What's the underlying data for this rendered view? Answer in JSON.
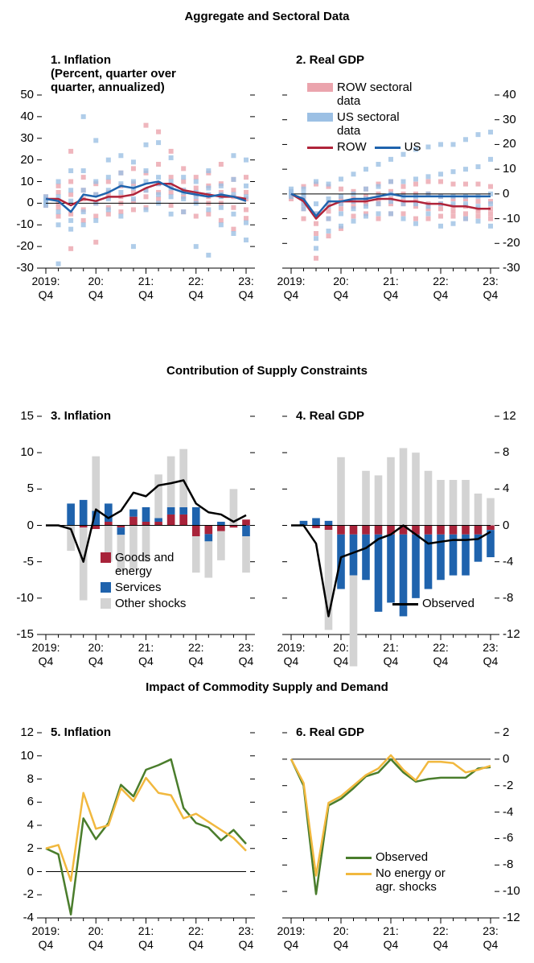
{
  "sections": [
    "Aggregate and Sectoral Data",
    "Contribution of Supply Constraints",
    "Impact of Commodity Supply and Demand"
  ],
  "chart_data": [
    {
      "type": "line",
      "title": "1. Inflation",
      "subtitle": "(Percent, quarter over quarter, annualized)",
      "yaxis_side": "left",
      "categories": [
        "2019: Q4",
        null,
        null,
        null,
        "20: Q4",
        null,
        null,
        null,
        "21: Q4",
        null,
        null,
        null,
        "22: Q4",
        null,
        null,
        null,
        "23: Q4"
      ],
      "ylim": [
        -30,
        50
      ],
      "yticks": [
        -30,
        -20,
        -10,
        0,
        10,
        20,
        30,
        40,
        50
      ],
      "series": [
        {
          "type": "scatter",
          "color": "#eba4ad",
          "values": [
            [
              3,
              1,
              0,
              2,
              -1
            ],
            [
              8,
              5,
              -2,
              -6,
              0
            ],
            [
              24,
              10,
              -5,
              -21,
              4
            ],
            [
              12,
              6,
              -3,
              -8,
              2
            ],
            [
              9,
              4,
              -6,
              -18,
              0
            ],
            [
              10,
              5,
              -2,
              -5,
              3
            ],
            [
              14,
              8,
              0,
              -4,
              3
            ],
            [
              16,
              9,
              1,
              -3,
              5
            ],
            [
              36,
              14,
              6,
              -2,
              3
            ],
            [
              33,
              18,
              9,
              2,
              5
            ],
            [
              24,
              12,
              5,
              -1,
              8
            ],
            [
              16,
              10,
              3,
              -4,
              6
            ],
            [
              12,
              7,
              1,
              -6,
              4
            ],
            [
              14,
              8,
              0,
              -5,
              3
            ],
            [
              18,
              9,
              0,
              -8,
              5
            ],
            [
              11,
              6,
              -2,
              -12,
              3
            ],
            [
              12,
              5,
              -3,
              -7,
              2
            ]
          ]
        },
        {
          "type": "scatter",
          "color": "#9cc0e4",
          "values": [
            [
              2,
              0,
              1,
              3,
              -1
            ],
            [
              10,
              -4,
              -10,
              -28,
              3
            ],
            [
              15,
              6,
              -8,
              -12,
              1
            ],
            [
              40,
              15,
              -4,
              -10,
              6
            ],
            [
              29,
              10,
              0,
              -8,
              4
            ],
            [
              20,
              12,
              2,
              -3,
              6
            ],
            [
              22,
              14,
              5,
              -6,
              9
            ],
            [
              19,
              10,
              2,
              -20,
              7
            ],
            [
              27,
              15,
              6,
              -3,
              10
            ],
            [
              28,
              12,
              4,
              0,
              9
            ],
            [
              21,
              10,
              3,
              -5,
              7
            ],
            [
              12,
              6,
              2,
              -4,
              5
            ],
            [
              10,
              5,
              0,
              -20,
              3
            ],
            [
              15,
              7,
              -3,
              -24,
              4
            ],
            [
              8,
              4,
              -2,
              -10,
              3
            ],
            [
              22,
              11,
              -5,
              -14,
              4
            ],
            [
              20,
              8,
              -9,
              -17,
              3
            ]
          ]
        },
        {
          "type": "line",
          "color": "#b0243a",
          "values": [
            2,
            2,
            -1,
            2,
            1,
            3,
            3,
            4,
            7,
            9,
            9,
            6,
            5,
            4,
            3,
            3,
            2
          ]
        },
        {
          "type": "line",
          "color": "#1f63ad",
          "values": [
            2,
            1,
            -4,
            4,
            3,
            5,
            8,
            7,
            9,
            10,
            7,
            5,
            4,
            3,
            4,
            3,
            1
          ]
        }
      ]
    },
    {
      "type": "line",
      "title": "2. Real GDP",
      "yaxis_side": "right",
      "legend": "top-left",
      "categories": [
        "2019: Q4",
        null,
        null,
        null,
        "20: Q4",
        null,
        null,
        null,
        "21: Q4",
        null,
        null,
        null,
        "22: Q4",
        null,
        null,
        null,
        "23: Q4"
      ],
      "ylim": [
        -30,
        40
      ],
      "yticks": [
        -30,
        -20,
        -10,
        0,
        10,
        20,
        30,
        40
      ],
      "series": [
        {
          "type": "scatter",
          "name": "ROW sectoral data",
          "color": "#eba4ad",
          "values": [
            [
              0,
              -1,
              1,
              0,
              -2
            ],
            [
              3,
              -2,
              -6,
              -10,
              -4
            ],
            [
              4,
              -8,
              -16,
              -26,
              -12
            ],
            [
              3,
              -4,
              -10,
              -17,
              -7
            ],
            [
              2,
              -2,
              -6,
              -14,
              -4
            ],
            [
              1,
              -2,
              -5,
              -9,
              -3
            ],
            [
              2,
              -1,
              -4,
              -8,
              -3
            ],
            [
              4,
              0,
              -4,
              -10,
              -3
            ],
            [
              5,
              1,
              -4,
              -8,
              -2
            ],
            [
              3,
              0,
              -4,
              -8,
              -3
            ],
            [
              4,
              0,
              -5,
              -10,
              -3
            ],
            [
              5,
              0,
              -6,
              -10,
              -4
            ],
            [
              5,
              -1,
              -6,
              -9,
              -4
            ],
            [
              4,
              -2,
              -7,
              -9,
              -5
            ],
            [
              4,
              -2,
              -8,
              -10,
              -5
            ],
            [
              4,
              -3,
              -7,
              -9,
              -6
            ],
            [
              3,
              -3,
              -8,
              -10,
              -6
            ]
          ]
        },
        {
          "type": "scatter",
          "name": "US sectoral data",
          "color": "#9cc0e4",
          "values": [
            [
              0,
              1,
              -1,
              2,
              0
            ],
            [
              2,
              -1,
              -4,
              -6,
              0
            ],
            [
              5,
              -4,
              -18,
              -22,
              -8
            ],
            [
              4,
              -2,
              -10,
              -15,
              -5
            ],
            [
              6,
              -1,
              -8,
              -13,
              -4
            ],
            [
              8,
              0,
              -6,
              -11,
              -3
            ],
            [
              10,
              2,
              -5,
              -9,
              -2
            ],
            [
              12,
              3,
              -4,
              -8,
              -1
            ],
            [
              14,
              5,
              -3,
              -8,
              0
            ],
            [
              16,
              5,
              -4,
              -10,
              -1
            ],
            [
              18,
              6,
              -4,
              -12,
              -1
            ],
            [
              19,
              7,
              -5,
              -8,
              0
            ],
            [
              20,
              8,
              -4,
              -13,
              -1
            ],
            [
              20,
              9,
              -4,
              -12,
              -1
            ],
            [
              22,
              10,
              -4,
              -10,
              -1
            ],
            [
              24,
              11,
              -5,
              -11,
              -1
            ],
            [
              25,
              14,
              -4,
              -13,
              0
            ]
          ]
        },
        {
          "type": "line",
          "name": "ROW",
          "color": "#b0243a",
          "values": [
            0,
            -3,
            -10,
            -5,
            -3,
            -3,
            -3,
            -2,
            -2,
            -3,
            -3,
            -4,
            -4,
            -5,
            -5,
            -6,
            -6
          ]
        },
        {
          "type": "line",
          "name": "US",
          "color": "#1f63ad",
          "values": [
            0,
            -2,
            -9,
            -3,
            -3,
            -2,
            -2,
            -1,
            0,
            -1,
            -1,
            -1,
            -1,
            -1,
            -1,
            -1,
            -1
          ]
        }
      ]
    },
    {
      "type": "bar",
      "title": "3. Inflation",
      "yaxis_side": "left",
      "legend": "bottom-left",
      "categories": [
        "2019: Q4",
        null,
        null,
        null,
        "20: Q4",
        null,
        null,
        null,
        "21: Q4",
        null,
        null,
        null,
        "22: Q4",
        null,
        null,
        null,
        "23: Q4"
      ],
      "ylim": [
        -15,
        15
      ],
      "yticks": [
        -15,
        -10,
        -5,
        0,
        5,
        10,
        15
      ],
      "series": [
        {
          "type": "bar",
          "name": "Goods and energy",
          "color": "#a8233a",
          "values": [
            0,
            0,
            0,
            -0.3,
            -0.5,
            0.5,
            -0.3,
            1.2,
            0.5,
            0.5,
            1.5,
            1.5,
            -1.5,
            -1.2,
            -0.8,
            -0.3,
            0.8
          ]
        },
        {
          "type": "bar",
          "name": "Services",
          "color": "#1f63ad",
          "values": [
            0,
            0,
            3,
            3.5,
            2,
            2.5,
            -1,
            1,
            2,
            0.5,
            1,
            1,
            2.5,
            -1,
            0.5,
            0,
            -1.5
          ]
        },
        {
          "type": "bar",
          "name": "Other shocks",
          "color": "#d3d3d3",
          "values": [
            0,
            0,
            -3.5,
            -10,
            7.5,
            -5,
            -5,
            -6,
            -5,
            6,
            7,
            8,
            -5,
            -5,
            -4,
            5,
            -5
          ]
        },
        {
          "type": "line",
          "color": "#000000",
          "values": [
            0,
            0,
            -0.5,
            -5,
            2.2,
            1,
            2,
            4.5,
            4,
            5.5,
            5.8,
            6.2,
            3,
            1.8,
            1.5,
            0.5,
            1.4
          ]
        }
      ]
    },
    {
      "type": "bar",
      "title": "4. Real GDP",
      "yaxis_side": "right",
      "legend": "bottom-right",
      "categories": [
        "2019: Q4",
        null,
        null,
        null,
        "20: Q4",
        null,
        null,
        null,
        "21: Q4",
        null,
        null,
        null,
        "22: Q4",
        null,
        null,
        null,
        "23: Q4"
      ],
      "ylim": [
        -12,
        12
      ],
      "yticks": [
        -12,
        -8,
        -4,
        0,
        4,
        8,
        12
      ],
      "series": [
        {
          "type": "bar",
          "color": "#a8233a",
          "values": [
            0,
            0,
            -0.3,
            -0.5,
            -1,
            -1,
            -1,
            -1,
            -1,
            -1,
            -1,
            -1,
            -1,
            -1,
            -1,
            -1,
            -0.5
          ]
        },
        {
          "type": "bar",
          "color": "#1f63ad",
          "values": [
            0,
            0.5,
            0.8,
            0.5,
            -6,
            -4.5,
            -5,
            -8.5,
            -7.5,
            -9,
            -7,
            -6,
            -5,
            -4.5,
            -4.5,
            -3,
            -3
          ]
        },
        {
          "type": "bar",
          "color": "#d3d3d3",
          "values": [
            0,
            0,
            0,
            -11,
            7.5,
            -10,
            6,
            5.5,
            7.5,
            8.5,
            8,
            6,
            5,
            5,
            5,
            3.5,
            3
          ]
        },
        {
          "type": "line",
          "name": "Observed",
          "color": "#000000",
          "values": [
            0,
            0,
            -2,
            -10,
            -3.5,
            -3,
            -2.5,
            -1.5,
            -1,
            0,
            -1,
            -2,
            -1.8,
            -1.6,
            -1.6,
            -1.5,
            -0.7
          ]
        }
      ]
    },
    {
      "type": "line",
      "title": "5. Inflation",
      "yaxis_side": "left",
      "categories": [
        "2019: Q4",
        null,
        null,
        null,
        "20: Q4",
        null,
        null,
        null,
        "21: Q4",
        null,
        null,
        null,
        "22: Q4",
        null,
        null,
        null,
        "23: Q4"
      ],
      "ylim": [
        -4,
        12
      ],
      "yticks": [
        -4,
        -2,
        0,
        2,
        4,
        6,
        8,
        10,
        12
      ],
      "series": [
        {
          "type": "line",
          "color": "#4a7d2c",
          "values": [
            2,
            1.5,
            -3.7,
            4.6,
            2.8,
            4.2,
            7.5,
            6.5,
            8.8,
            9.2,
            9.7,
            5.5,
            4.2,
            3.8,
            2.7,
            3.6,
            2.4
          ]
        },
        {
          "type": "line",
          "color": "#f1b83e",
          "values": [
            2,
            2.3,
            -0.8,
            6.8,
            3.7,
            4,
            7.2,
            6.1,
            8.1,
            6.8,
            6.6,
            4.6,
            5,
            4.3,
            3.6,
            2.9,
            1.8
          ]
        }
      ]
    },
    {
      "type": "line",
      "title": "6. Real GDP",
      "yaxis_side": "right",
      "legend": "bottom-left",
      "categories": [
        "2019: Q4",
        null,
        null,
        null,
        "20: Q4",
        null,
        null,
        null,
        "21: Q4",
        null,
        null,
        null,
        "22: Q4",
        null,
        null,
        null,
        "23: Q4"
      ],
      "ylim": [
        -12,
        2
      ],
      "yticks": [
        -12,
        -10,
        -8,
        -6,
        -4,
        -2,
        0,
        2
      ],
      "series": [
        {
          "type": "line",
          "name": "Observed",
          "color": "#4a7d2c",
          "values": [
            0,
            -2,
            -10.2,
            -3.5,
            -3,
            -2.2,
            -1.3,
            -1,
            0,
            -1,
            -1.7,
            -1.5,
            -1.4,
            -1.4,
            -1.4,
            -0.7,
            -0.6
          ]
        },
        {
          "type": "line",
          "name": "No energy or agr. shocks",
          "color": "#f1b83e",
          "values": [
            0,
            -1.8,
            -8.8,
            -3.3,
            -2.8,
            -2,
            -1.2,
            -0.7,
            0.3,
            -0.8,
            -1.6,
            -0.2,
            -0.2,
            -0.3,
            -1,
            -0.8,
            -0.5
          ]
        }
      ]
    }
  ]
}
